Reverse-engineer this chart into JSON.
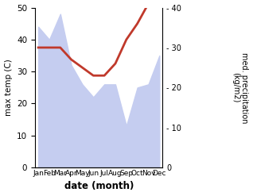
{
  "months": [
    "Jan",
    "Feb",
    "Mar",
    "Apr",
    "May",
    "Jun",
    "Jul",
    "Aug",
    "Sep",
    "Oct",
    "Nov",
    "Dec"
  ],
  "month_indices": [
    0,
    1,
    2,
    3,
    4,
    5,
    6,
    7,
    8,
    9,
    10,
    11
  ],
  "max_temp": [
    44,
    40,
    48,
    32,
    26,
    22,
    26,
    26,
    13,
    25,
    26,
    35
  ],
  "precipitation": [
    30,
    30,
    30,
    27,
    25,
    23,
    23,
    26,
    32,
    36,
    41,
    42
  ],
  "precip_color": "#c0392b",
  "temp_fill_color": "#c5cdf0",
  "xlabel": "date (month)",
  "ylabel_left": "max temp (C)",
  "ylabel_right": "med. precipitation\n(kg/m2)",
  "ylim_left": [
    0,
    50
  ],
  "ylim_right": [
    0,
    40
  ],
  "yticks_left": [
    0,
    10,
    20,
    30,
    40,
    50
  ],
  "yticks_right": [
    0,
    10,
    20,
    30,
    40
  ],
  "bg_color": "#ffffff",
  "figsize": [
    3.18,
    2.47
  ],
  "dpi": 100
}
